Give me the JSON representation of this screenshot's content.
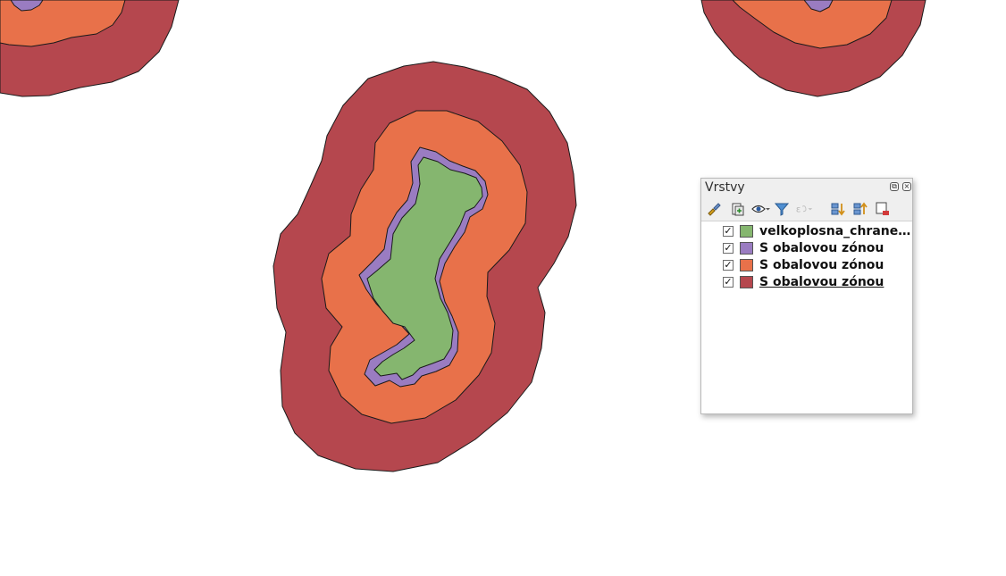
{
  "map": {
    "colors": {
      "core": "#85b66f",
      "buffer1": "#9a7cc1",
      "buffer2": "#e8714a",
      "buffer3": "#b5474e",
      "outline": "#1a1a1a"
    }
  },
  "layers_panel": {
    "title": "Vrstvy",
    "title_buttons": [
      "float-icon",
      "close-icon"
    ],
    "toolbar_icons": [
      "style-brush-icon",
      "add-group-icon",
      "visibility-eye-icon",
      "filter-icon",
      "expression-filter-icon",
      "expand-all-icon",
      "collapse-all-icon",
      "remove-layer-icon"
    ],
    "layers": [
      {
        "label": "velkoplosna_chranen...",
        "checked": true,
        "color": "#85b66f",
        "current": false
      },
      {
        "label": "S obalovou zónou",
        "checked": true,
        "color": "#9a7cc1",
        "current": false
      },
      {
        "label": "S obalovou zónou",
        "checked": true,
        "color": "#e8714a",
        "current": false
      },
      {
        "label": "S obalovou zónou",
        "checked": true,
        "color": "#b5474e",
        "current": true
      }
    ]
  }
}
